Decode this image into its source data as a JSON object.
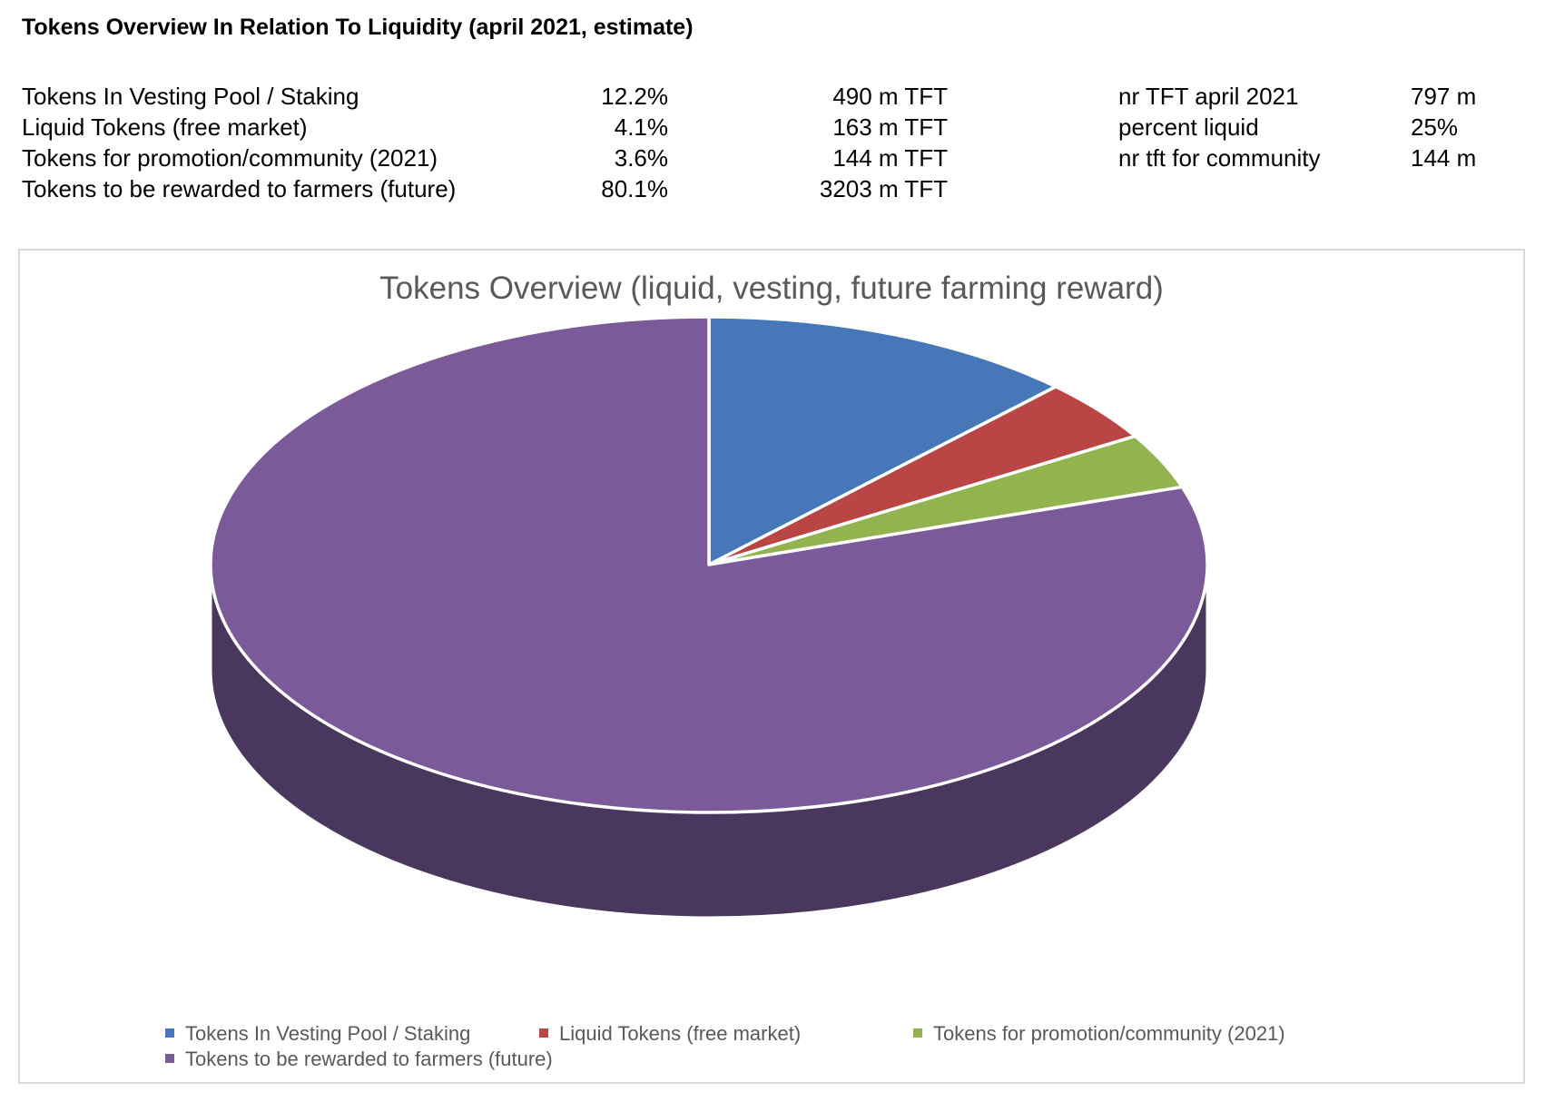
{
  "sheet": {
    "title": "Tokens Overview In Relation To Liquidity (april 2021, estimate)",
    "rows": [
      {
        "label": "Tokens In Vesting Pool / Staking",
        "pct": "12.2%",
        "amount": "490 m TFT",
        "side_label": "nr TFT april 2021",
        "side_value": "797  m"
      },
      {
        "label": "Liquid Tokens (free market)",
        "pct": "4.1%",
        "amount": "163 m TFT",
        "side_label": "percent liquid",
        "side_value": "25%"
      },
      {
        "label": "Tokens for promotion/community (2021)",
        "pct": "3.6%",
        "amount": "144 m TFT",
        "side_label": "nr tft for community",
        "side_value": "144  m"
      },
      {
        "label": "Tokens to be rewarded to farmers (future)",
        "pct": "80.1%",
        "amount": "3203 m TFT",
        "side_label": "",
        "side_value": ""
      }
    ]
  },
  "chart_data": {
    "type": "pie",
    "variant": "3d",
    "title": "Tokens Overview (liquid, vesting, future farming reward)",
    "categories": [
      "Tokens In Vesting Pool / Staking",
      "Liquid Tokens (free market)",
      "Tokens for promotion/community (2021)",
      "Tokens to be rewarded to farmers (future)"
    ],
    "values": [
      490,
      163,
      144,
      3203
    ],
    "colors": [
      "#4677b8",
      "#b94644",
      "#93b34f",
      "#7a5a98"
    ],
    "side_colors": [
      "#2b4a73",
      "#74292a",
      "#5b7131",
      "#4a375d"
    ],
    "legend": "bottom"
  }
}
